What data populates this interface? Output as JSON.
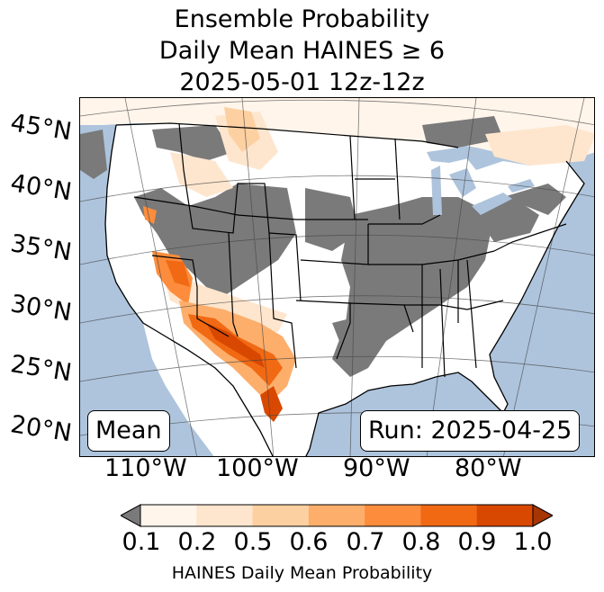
{
  "title": {
    "line1": "Ensemble Probability",
    "line2": "Daily Mean HAINES ≥ 6",
    "line3": "2025-05-01 12z-12z"
  },
  "map": {
    "lat_labels": [
      "45°N",
      "40°N",
      "35°N",
      "30°N",
      "25°N",
      "20°N"
    ],
    "lon_labels": [
      "110°W",
      "100°W",
      "90°W",
      "80°W"
    ],
    "left_box": "Mean",
    "right_box": "Run: 2025-04-25",
    "ocean_color": "#aec4dd",
    "missing_color": "#7a7a7a",
    "below_color": "#ffffff"
  },
  "colorbar": {
    "ticks": [
      "0.1",
      "0.2",
      "0.5",
      "0.6",
      "0.7",
      "0.8",
      "0.9",
      "1.0"
    ],
    "colors": [
      "#fff5eb",
      "#fee6ce",
      "#fdd0a2",
      "#fdae6b",
      "#fd8d3c",
      "#f16913",
      "#d94801"
    ],
    "under_color": "#7a7a7a",
    "over_color": "#a63603",
    "label": "HAINES Daily Mean Probability"
  }
}
